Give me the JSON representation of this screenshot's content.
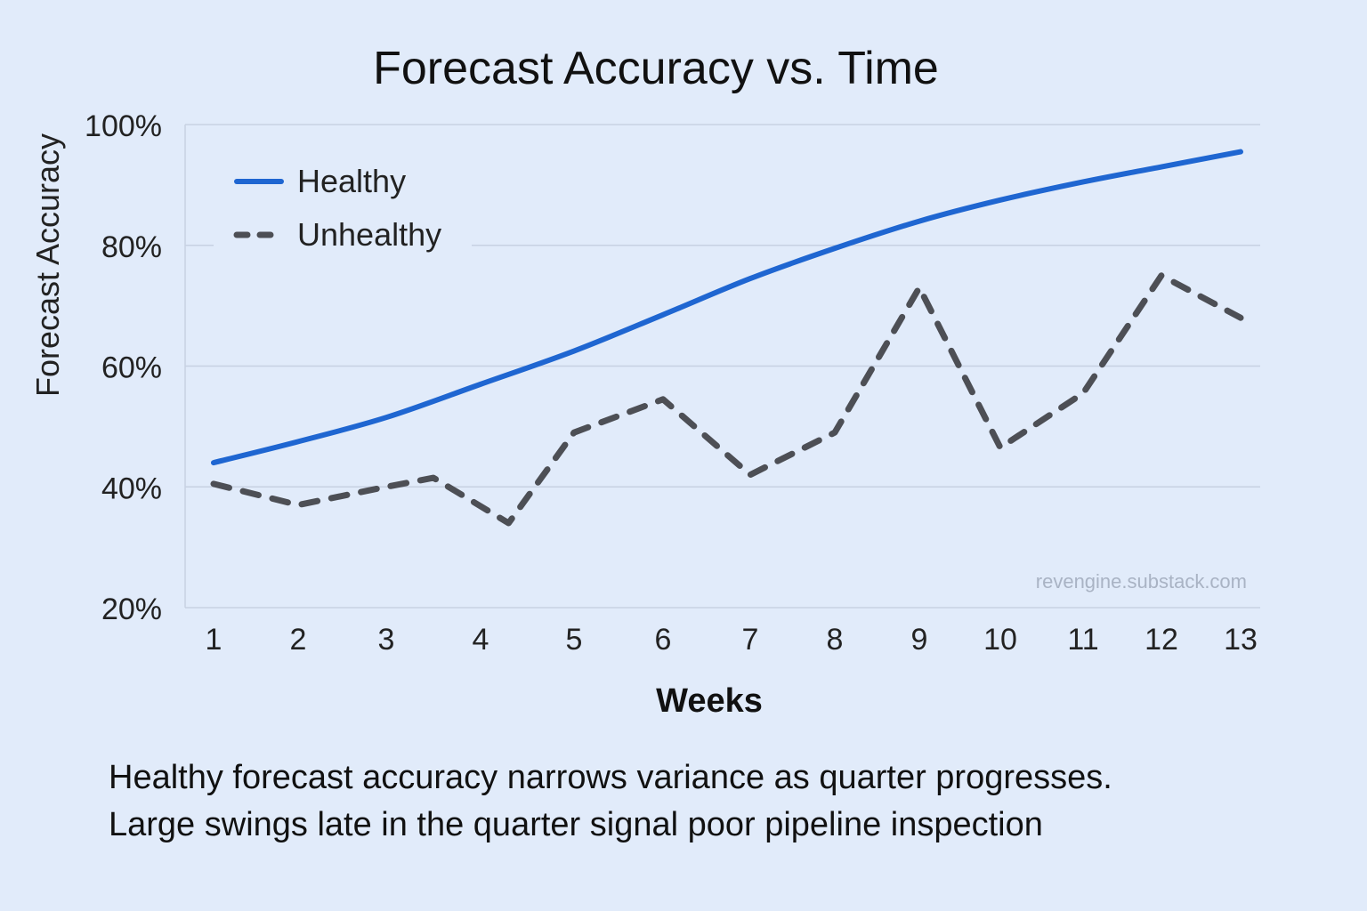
{
  "chart_data": {
    "type": "line",
    "title": "Forecast Accuracy vs. Time",
    "xlabel": "Weeks",
    "ylabel": "Forecast Accuracy",
    "x": [
      1,
      2,
      3,
      4,
      5,
      6,
      7,
      8,
      9,
      10,
      11,
      12,
      13
    ],
    "xtick_labels": [
      "1",
      "2",
      "3",
      "4",
      "5",
      "6",
      "7",
      "8",
      "9",
      "10",
      "11",
      "12",
      "13"
    ],
    "ylim": [
      20,
      100
    ],
    "yticks": [
      20,
      40,
      60,
      80,
      100
    ],
    "ytick_labels": [
      "20%",
      "40%",
      "60%",
      "80%",
      "100%"
    ],
    "grid": true,
    "legend_position": "top-left",
    "series": [
      {
        "name": "Healthy",
        "style": "solid",
        "color": "#1f66d1",
        "points": [
          [
            1,
            44
          ],
          [
            2,
            47.5
          ],
          [
            3,
            51.5
          ],
          [
            4,
            57
          ],
          [
            5,
            62.5
          ],
          [
            6,
            68.5
          ],
          [
            7,
            74.5
          ],
          [
            8,
            79.5
          ],
          [
            9,
            84
          ],
          [
            10,
            87.5
          ],
          [
            11,
            90.5
          ],
          [
            12,
            93
          ],
          [
            13,
            95.5
          ]
        ]
      },
      {
        "name": "Unhealthy",
        "style": "dashed",
        "color": "#4d4f55",
        "points": [
          [
            1,
            40.5
          ],
          [
            2,
            37
          ],
          [
            3,
            40
          ],
          [
            3.5,
            41.5
          ],
          [
            4.3,
            34
          ],
          [
            5,
            49
          ],
          [
            6,
            54.5
          ],
          [
            7,
            42
          ],
          [
            8,
            49
          ],
          [
            9,
            73
          ],
          [
            10,
            46.5
          ],
          [
            11,
            55.5
          ],
          [
            12,
            75
          ],
          [
            13,
            68
          ]
        ]
      }
    ],
    "watermark": "revengine.substack.com"
  },
  "caption": {
    "line1": "Healthy forecast accuracy narrows variance as quarter progresses.",
    "line2": "Large swings late in the quarter signal poor pipeline inspection"
  }
}
